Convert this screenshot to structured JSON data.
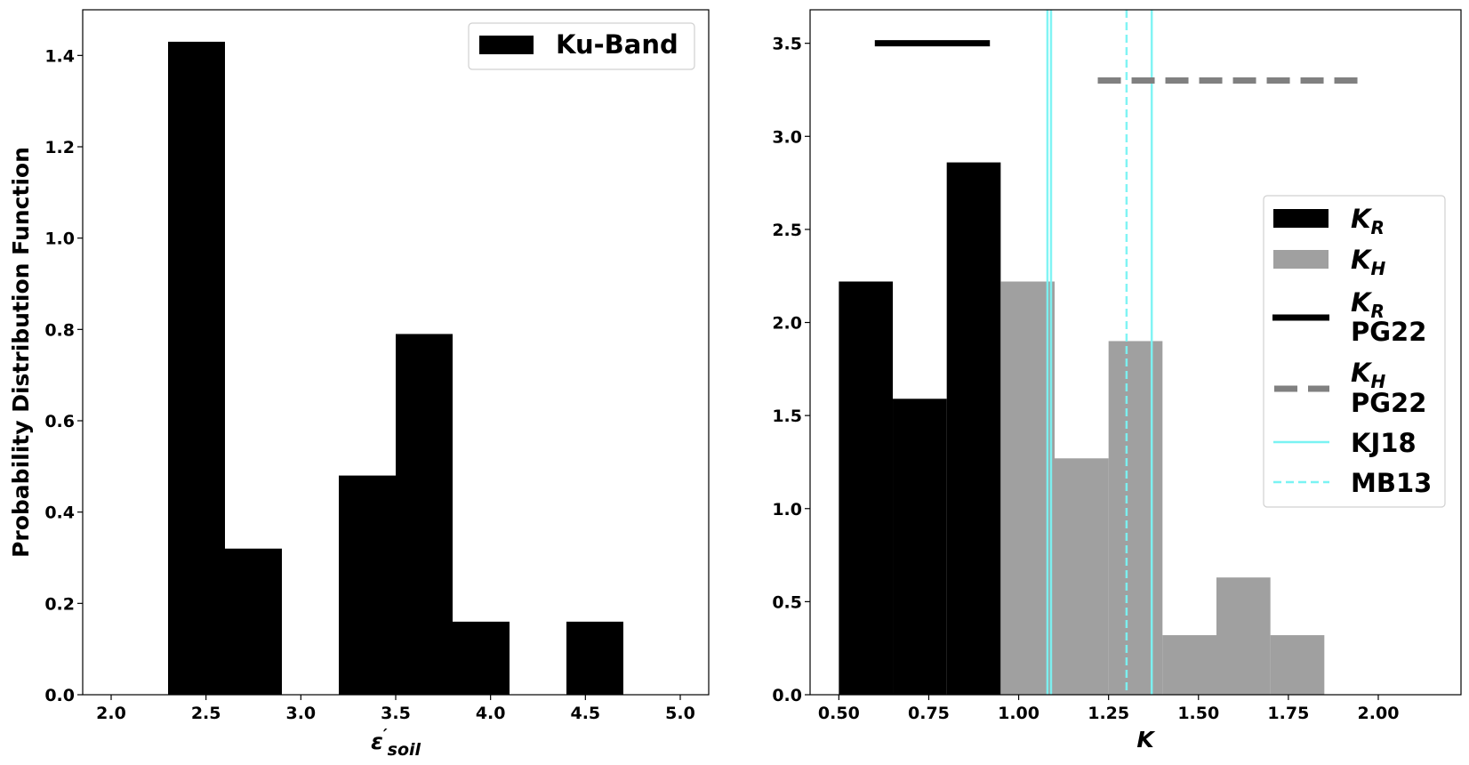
{
  "chart_data": [
    {
      "type": "bar",
      "title": "",
      "ylabel": "Probability Distribution Function",
      "xlabel": {
        "base": "ε",
        "prime": "′",
        "sub": "soil"
      },
      "xlim": [
        1.85,
        5.15
      ],
      "ylim": [
        0,
        1.5
      ],
      "xticks": [
        "2.0",
        "2.5",
        "3.0",
        "3.5",
        "4.0",
        "4.5",
        "5.0"
      ],
      "yticks": [
        "0.0",
        "0.2",
        "0.4",
        "0.6",
        "0.8",
        "1.0",
        "1.2",
        "1.4"
      ],
      "bin_edges": [
        2.3,
        2.6,
        2.9,
        3.2,
        3.5,
        3.8,
        4.1,
        4.4,
        4.7
      ],
      "series": [
        {
          "name": "Ku-Band",
          "color": "#000000",
          "values": [
            1.43,
            0.32,
            0.0,
            0.48,
            0.79,
            0.16,
            0.0,
            0.16
          ]
        }
      ],
      "legend": {
        "position": "top-right"
      }
    },
    {
      "type": "bar",
      "title": "",
      "ylabel": "",
      "xlabel": "K",
      "xlim": [
        0.42,
        2.23
      ],
      "ylim": [
        0,
        3.68
      ],
      "xticks": [
        "0.50",
        "0.75",
        "1.00",
        "1.25",
        "1.50",
        "1.75",
        "2.00"
      ],
      "yticks": [
        "0.0",
        "0.5",
        "1.0",
        "1.5",
        "2.0",
        "2.5",
        "3.0",
        "3.5"
      ],
      "series": [
        {
          "name": {
            "base": "K",
            "sub": "R"
          },
          "color": "#000000",
          "bin_edges": [
            0.5,
            0.65,
            0.8,
            0.95
          ],
          "values": [
            2.22,
            1.59,
            2.86
          ]
        },
        {
          "name": {
            "base": "K",
            "sub": "H"
          },
          "color": "#a0a0a0",
          "bin_edges": [
            0.95,
            1.1,
            1.25,
            1.4,
            1.55,
            1.7,
            1.85
          ],
          "values": [
            2.22,
            1.27,
            1.9,
            0.32,
            0.63,
            0.32
          ]
        }
      ],
      "ranges": [
        {
          "name": {
            "base": "K",
            "sub": "R",
            "line2": "PG22"
          },
          "color": "#000000",
          "style": "solid",
          "x": [
            0.6,
            0.92
          ],
          "y": 3.5
        },
        {
          "name": {
            "base": "K",
            "sub": "H",
            "line2": "PG22"
          },
          "color": "#808080",
          "style": "dashed",
          "x": [
            1.22,
            1.95
          ],
          "y": 3.3
        }
      ],
      "vlines": [
        {
          "name": "KJ18",
          "color": "#7af3f3",
          "style": "solid",
          "x": [
            1.08,
            1.09,
            1.37
          ]
        },
        {
          "name": "MB13",
          "color": "#7af3f3",
          "style": "dashed",
          "x": [
            1.3
          ]
        }
      ],
      "legend": {
        "position": "center-right"
      }
    }
  ]
}
